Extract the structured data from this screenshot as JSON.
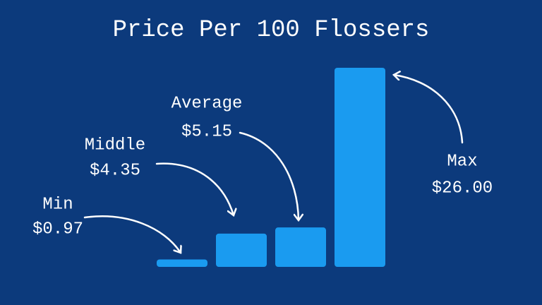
{
  "chart_data": {
    "type": "bar",
    "title": "Price Per 100 Flossers",
    "categories": [
      "Min",
      "Middle",
      "Average",
      "Max"
    ],
    "values": [
      0.97,
      4.35,
      5.15,
      26.0
    ],
    "value_labels": [
      "$0.97",
      "$4.35",
      "$5.15",
      "$26.00"
    ],
    "color": "#1a9bf0"
  }
}
